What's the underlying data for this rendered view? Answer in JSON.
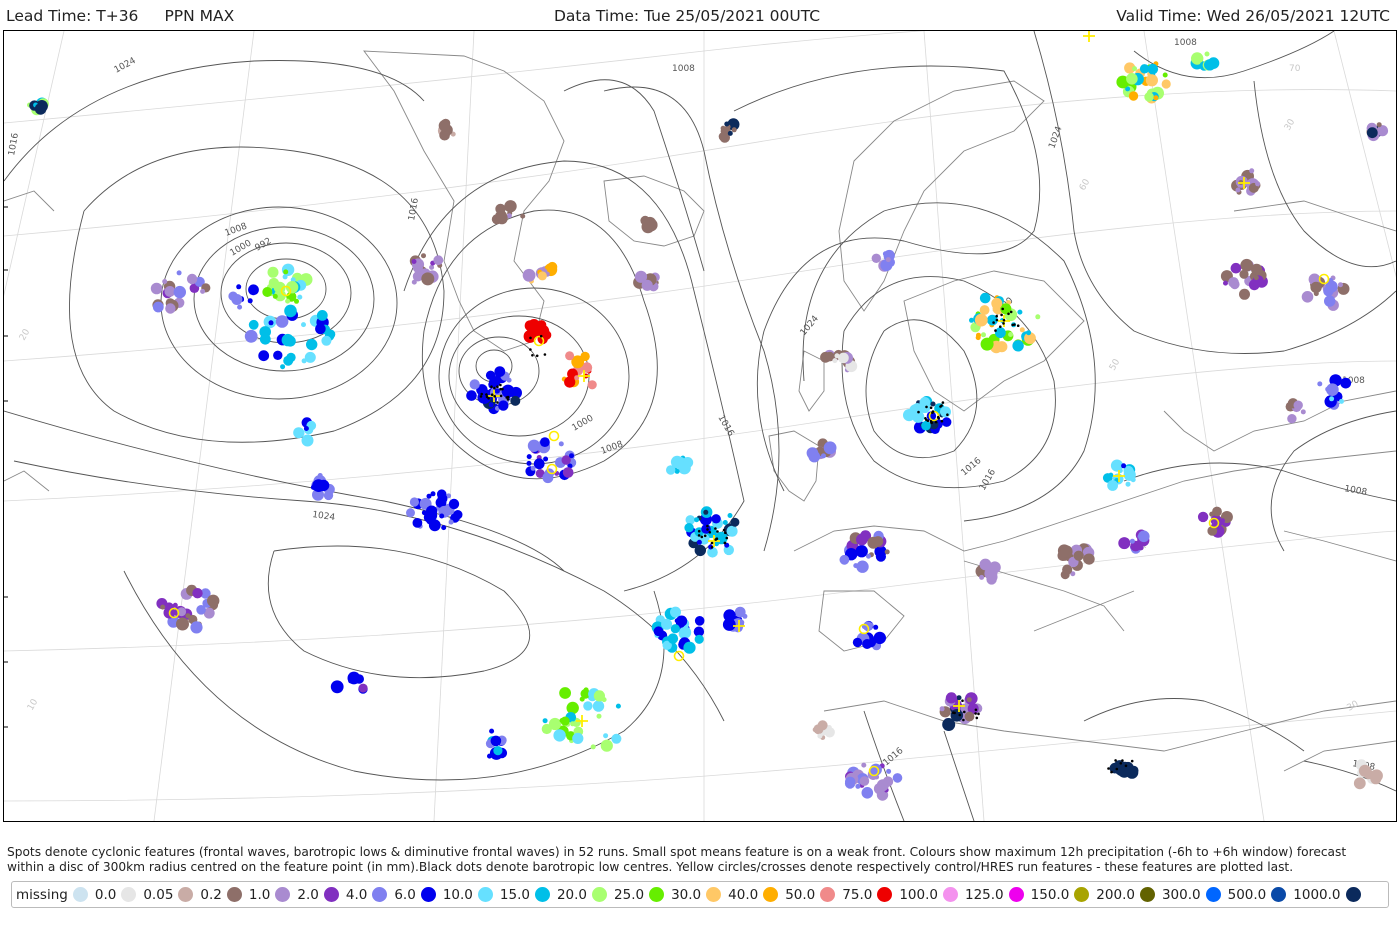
{
  "header": {
    "lead_time": "Lead Time: T+36",
    "product": "PPN MAX",
    "data_time": "Data Time: Tue 25/05/2021 00UTC",
    "valid_time": "Valid Time: Wed 26/05/2021 12UTC"
  },
  "map": {
    "isobar_labels": [
      "1024",
      "1016",
      "1008",
      "1000",
      "992",
      "1008",
      "1016",
      "1024",
      "1016",
      "1008",
      "1000",
      "1024",
      "1008",
      "1008",
      "1016",
      "1016",
      "1016",
      "1024",
      "1008",
      "1008",
      "1000"
    ],
    "latitude_labels": [
      "70",
      "30",
      "60",
      "50",
      "40",
      "30",
      "20",
      "10"
    ],
    "features_note": "52 runs"
  },
  "caption": {
    "line1": "Spots denote cyclonic features (frontal waves, barotropic lows & diminutive frontal waves) in 52 runs. Small spot means feature is on a weak front. Colours show maximum 12h precipitation (-6h to +6h window) forecast",
    "line2": "within a disc of 300km radius centred on the feature point (in mm).Black dots denote barotropic low centres. Yellow circles/crosses denote respectively control/HRES run features - these features are plotted last."
  },
  "legend": [
    {
      "label": "missing",
      "color": "#cde3f0"
    },
    {
      "label": "0.0",
      "color": "#e6e6e6"
    },
    {
      "label": "0.05",
      "color": "#c9aca6"
    },
    {
      "label": "0.2",
      "color": "#8e6f69"
    },
    {
      "label": "1.0",
      "color": "#a98bd0"
    },
    {
      "label": "2.0",
      "color": "#8130c0"
    },
    {
      "label": "4.0",
      "color": "#8080f0"
    },
    {
      "label": "6.0",
      "color": "#0000ee"
    },
    {
      "label": "10.0",
      "color": "#66e0ff"
    },
    {
      "label": "15.0",
      "color": "#00bfe8"
    },
    {
      "label": "20.0",
      "color": "#a8ff70"
    },
    {
      "label": "25.0",
      "color": "#66ee00"
    },
    {
      "label": "30.0",
      "color": "#ffc866"
    },
    {
      "label": "40.0",
      "color": "#ffae00"
    },
    {
      "label": "50.0",
      "color": "#f08a8a"
    },
    {
      "label": "75.0",
      "color": "#ee0000"
    },
    {
      "label": "100.0",
      "color": "#f492ee"
    },
    {
      "label": "125.0",
      "color": "#ee00ee"
    },
    {
      "label": "150.0",
      "color": "#a8a400"
    },
    {
      "label": "200.0",
      "color": "#626200"
    },
    {
      "label": "300.0",
      "color": "#0066ff"
    },
    {
      "label": "500.0",
      "color": "#0a4aa8"
    },
    {
      "label": "1000.0",
      "color": "#0b2a5c"
    }
  ]
}
